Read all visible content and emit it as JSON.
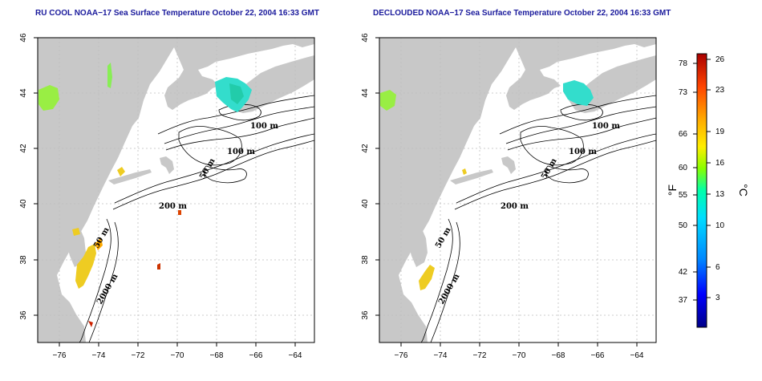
{
  "titles": {
    "left": "RU COOL NOAA−17 Sea Surface Temperature October 22, 2004 16:33 GMT",
    "right": "DECLOUDED NOAA−17 Sea Surface Temperature October 22, 2004 16:33 GMT"
  },
  "axes": {
    "lon_ticks": [
      "−76",
      "−74",
      "−72",
      "−70",
      "−68",
      "−66",
      "−64"
    ],
    "lat_ticks": [
      "36",
      "38",
      "40",
      "42",
      "44",
      "46"
    ]
  },
  "contours": {
    "left": [
      "100 m",
      "100 m",
      "50 m",
      "200 m",
      "50 m",
      "2000 m"
    ],
    "right": [
      "100 m",
      "100 m",
      "50 m",
      "200 m",
      "50 m",
      "2000 m"
    ]
  },
  "colorbar": {
    "fahrenheit_ticks": [
      "78",
      "73",
      "66",
      "60",
      "55",
      "50",
      "42",
      "37"
    ],
    "celsius_ticks": [
      "26",
      "23",
      "19",
      "16",
      "13",
      "10",
      "6",
      "3"
    ],
    "fahrenheit_unit": "°F",
    "celsius_unit": "°C",
    "colors": [
      "#000088",
      "#0000ff",
      "#0088ff",
      "#00ddff",
      "#00ffaa",
      "#88ff00",
      "#ffee00",
      "#ffaa00",
      "#ff4400",
      "#aa0000"
    ]
  },
  "colors": {
    "land": "#c8c8c8",
    "title": "#1a1a9c"
  }
}
